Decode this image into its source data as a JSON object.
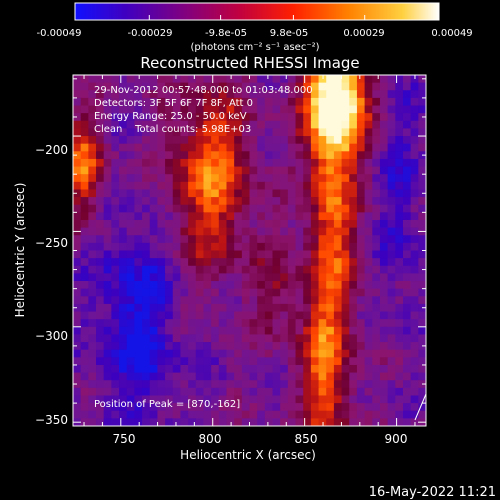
{
  "colorbar": {
    "tick_labels": [
      "-0.00049",
      "-0.00029",
      "-9.8e-05",
      "9.8e-05",
      "0.00029",
      "0.00049"
    ],
    "tick_values": [
      -0.00049,
      -0.00029,
      -9.8e-05,
      9.8e-05,
      0.00029,
      0.00049
    ],
    "range": [
      -0.00049,
      0.00049
    ],
    "units_label": "(photons cm⁻² s⁻¹ asec⁻²)",
    "colors": [
      "#1010ff",
      "#4000c0",
      "#800080",
      "#c00040",
      "#ff2000",
      "#ff8000",
      "#ffd040",
      "#ffffff"
    ]
  },
  "chart_data": {
    "type": "heatmap",
    "title": "Reconstructed RHESSI Image",
    "xlabel": "Heliocentric X (arcsec)",
    "ylabel": "Heliocentric Y (arcsec)",
    "xlim": [
      724,
      916
    ],
    "ylim": [
      -352,
      -168
    ],
    "xticks": [
      750,
      800,
      850,
      900
    ],
    "yticks": [
      -200,
      -250,
      -300,
      -350
    ],
    "info_lines": [
      "29-Nov-2012 00:57:48.000 to 01:03:48.000",
      "Detectors: 3F 5F 6F 7F 8F, Att 0",
      "Energy Range: 25.0 - 50.0 keV",
      "Clean    Total counts: 5.98E+03"
    ],
    "peak_label": "Position of Peak = [870,-162]",
    "peak_position": [
      870,
      -162
    ]
  },
  "footer": {
    "timestamp": "16-May-2022 11:21"
  }
}
